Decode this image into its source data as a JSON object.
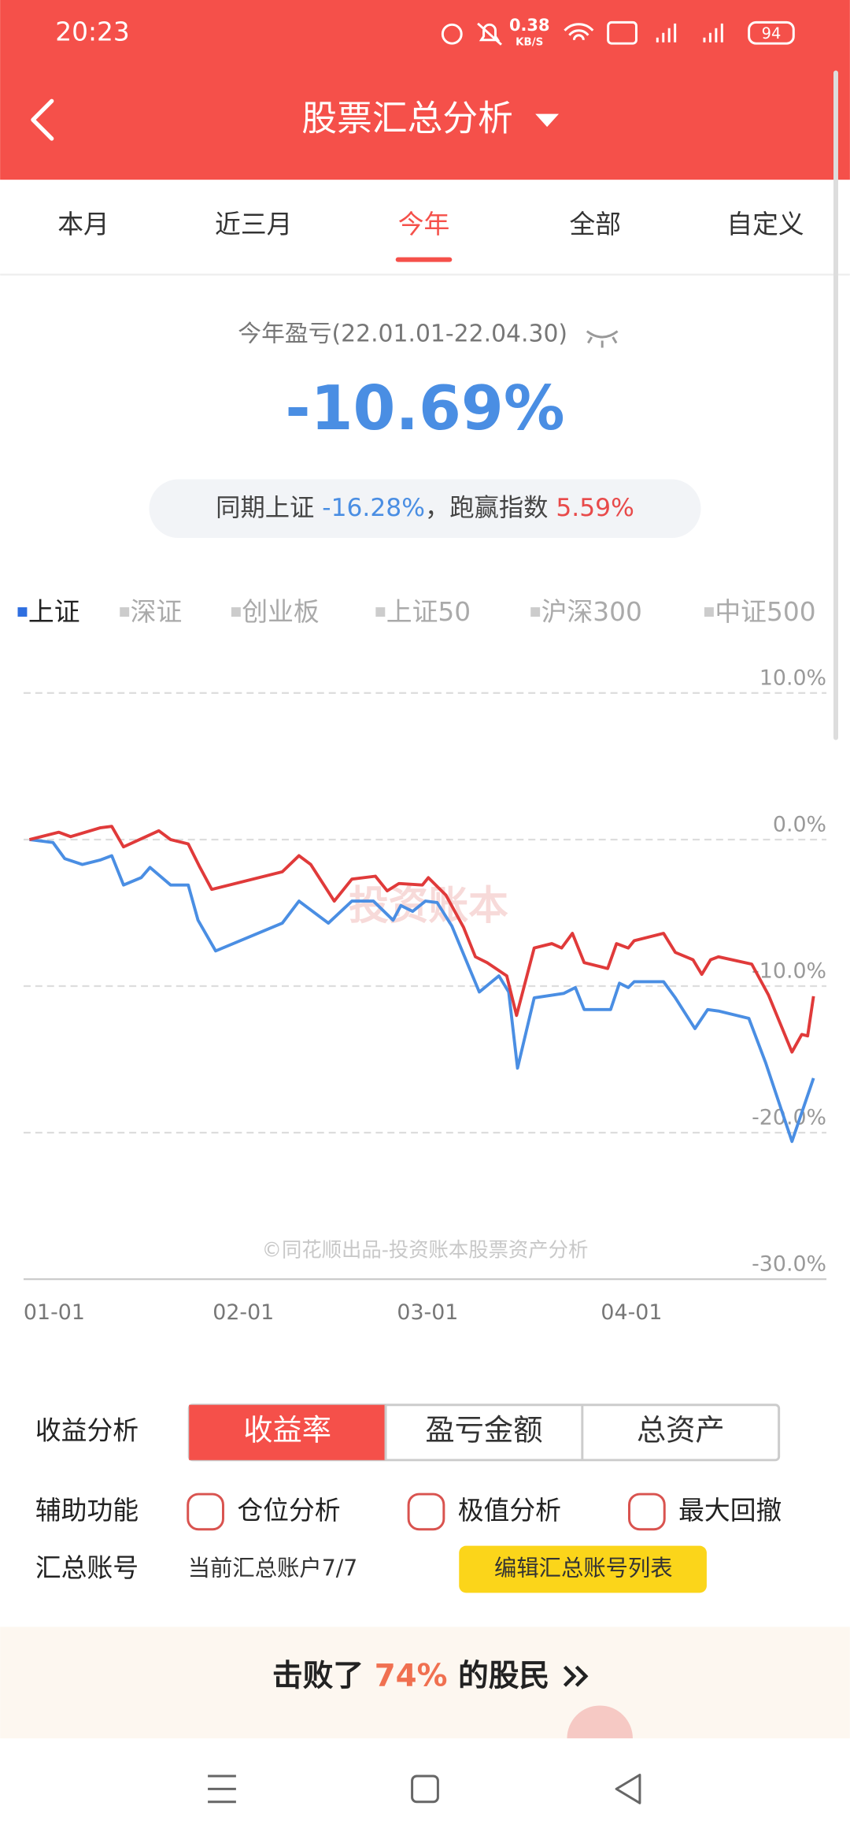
{
  "status": {
    "time": "20:23",
    "speed": "0.38",
    "speed_unit": "KB/S",
    "battery": "94"
  },
  "header": {
    "title": "股票汇总分析"
  },
  "tabs": {
    "items": [
      "本月",
      "近三月",
      "今年",
      "全部",
      "自定义"
    ],
    "active": 2,
    "active_color": "#f5504a"
  },
  "summary": {
    "label": "今年盈亏(22.01.01-22.04.30)",
    "value": "-10.69%",
    "compare_label": "同期上证 ",
    "compare_value": "-16.28%",
    "beat_label": "，跑赢指数 ",
    "beat_value": "5.59%"
  },
  "index_legend": {
    "items": [
      "上证",
      "深证",
      "创业板",
      "上证50",
      "沪深300",
      "中证500"
    ],
    "active": 0
  },
  "chart_data": {
    "type": "line",
    "xlim": [
      0,
      80
    ],
    "xticks": [
      {
        "value": 0,
        "label": "01-01"
      },
      {
        "value": 19.3,
        "label": "02-01"
      },
      {
        "value": 38.1,
        "label": "03-01"
      },
      {
        "value": 58.9,
        "label": "04-01"
      }
    ],
    "ylim": [
      -30,
      10
    ],
    "yticks": [
      {
        "value": 10,
        "label": "10.0%"
      },
      {
        "value": 0,
        "label": "0.0%"
      },
      {
        "value": -10,
        "label": "-10.0%"
      },
      {
        "value": -20,
        "label": "-20.0%"
      },
      {
        "value": -30,
        "label": "-30.0%"
      }
    ],
    "grid": true,
    "watermark": "投资账本",
    "credit": "©同花顺出品-投资账本股票资产分析",
    "series": [
      {
        "color": "#4a8ee3",
        "x": [
          0,
          2.4,
          3.6,
          5.4,
          7.2,
          8.4,
          9.6,
          11.4,
          12.3,
          14.4,
          16.2,
          17.2,
          19.0,
          25.8,
          27.5,
          30.5,
          32.9,
          35.1,
          37.1,
          37.9,
          39.1,
          40.4,
          41.6,
          43.1,
          44.9,
          45.9,
          47.9,
          48.9,
          49.8,
          51.5,
          54.5,
          55.7,
          56.6,
          59.3,
          60.2,
          61.1,
          61.7,
          64.7,
          65.9,
          67.9,
          69.2,
          70.3,
          73.4,
          75.1,
          77.8,
          80
        ],
        "values": [
          0,
          -0.2,
          -1.3,
          -1.7,
          -1.4,
          -1.1,
          -3.1,
          -2.6,
          -1.9,
          -3.1,
          -3.1,
          -5.5,
          -7.6,
          -5.7,
          -4.2,
          -5.7,
          -4.2,
          -4.2,
          -5.5,
          -4.5,
          -4.9,
          -4.2,
          -4.3,
          -5.9,
          -8.8,
          -10.4,
          -9.3,
          -10.4,
          -15.6,
          -10.8,
          -10.5,
          -10.1,
          -11.6,
          -11.6,
          -9.8,
          -10.1,
          -9.7,
          -9.7,
          -10.8,
          -12.9,
          -11.6,
          -11.7,
          -12.2,
          -15.2,
          -20.6,
          -16.28
        ]
      },
      {
        "color": "#e03a3a",
        "x": [
          0,
          3,
          4.2,
          7.2,
          8.4,
          9.6,
          13.2,
          14.4,
          16.2,
          17.4,
          18.6,
          25.8,
          27.5,
          28.7,
          31.1,
          32.9,
          35.3,
          36.5,
          37.7,
          40.1,
          40.7,
          42.5,
          44.3,
          45.5,
          46.7,
          48.7,
          49.7,
          51.5,
          53.3,
          54.3,
          55.4,
          56.6,
          59.0,
          59.9,
          61.1,
          61.7,
          64.7,
          65.9,
          67.7,
          68.6,
          69.5,
          70.3,
          73.7,
          75.4,
          77.8,
          78.8,
          79.4,
          80
        ],
        "values": [
          0,
          0.5,
          0.2,
          0.8,
          0.9,
          -0.5,
          0.6,
          0,
          -0.3,
          -1.9,
          -3.4,
          -2.2,
          -1.1,
          -1.7,
          -4.2,
          -2.7,
          -2.5,
          -3.5,
          -3.0,
          -3.1,
          -2.6,
          -3.8,
          -6.0,
          -8.0,
          -8.4,
          -9.3,
          -12.0,
          -7.4,
          -7.1,
          -7.4,
          -6.4,
          -8.4,
          -8.8,
          -7.1,
          -7.4,
          -6.9,
          -6.4,
          -7.7,
          -8.2,
          -9.2,
          -8.2,
          -8.0,
          -8.5,
          -10.6,
          -14.5,
          -13.3,
          -13.4,
          -10.69
        ]
      }
    ]
  },
  "analysis": {
    "label": "收益分析",
    "buttons": [
      "收益率",
      "盈亏金额",
      "总资产"
    ],
    "active": 0
  },
  "assist": {
    "label": "辅助功能",
    "options": [
      "仓位分析",
      "极值分析",
      "最大回撤"
    ]
  },
  "account": {
    "label": "汇总账号",
    "current": "当前汇总账户7/7",
    "edit": "编辑汇总账号列表"
  },
  "banner": {
    "prefix": "击败了 ",
    "percent": "74%",
    "suffix": " 的股民"
  }
}
